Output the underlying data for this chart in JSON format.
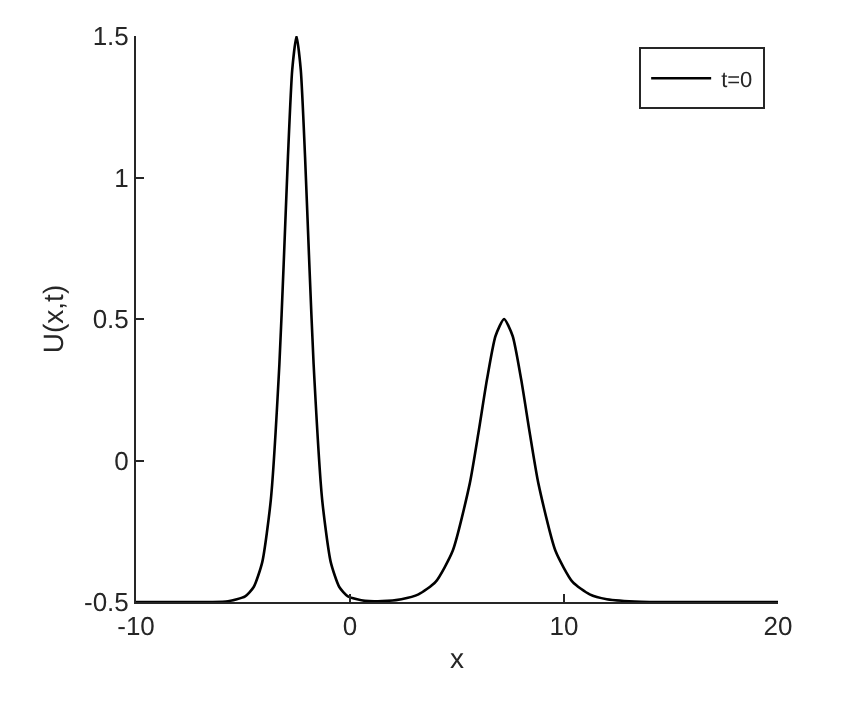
{
  "chart_data": {
    "type": "line",
    "xlabel": "x",
    "ylabel": "U(x,t)",
    "xlim": [
      -10,
      20
    ],
    "ylim": [
      -0.5,
      1.5
    ],
    "xticks": [
      -10,
      0,
      10,
      20
    ],
    "yticks": [
      -0.5,
      0,
      0.5,
      1,
      1.5
    ],
    "legend": "top right",
    "marker": "none",
    "line_style": "solid",
    "series": [
      {
        "name": "t=0",
        "color": "#000000",
        "x": [
          -10,
          -6.5,
          -5.7,
          -4.9,
          -4.5,
          -4.1,
          -3.7,
          -3.3,
          -3.1,
          -2.9,
          -2.7,
          -2.5,
          -2.3,
          -2.1,
          -1.9,
          -1.7,
          -1.3,
          -0.9,
          -0.5,
          -0.1,
          0.7,
          1.5,
          2.4,
          3.2,
          4.0,
          4.8,
          5.6,
          6.0,
          6.4,
          6.8,
          7.2,
          7.6,
          8.0,
          8.4,
          8.8,
          9.6,
          10.4,
          11.2,
          12.0,
          13.6,
          15,
          20
        ],
        "values": [
          -0.5,
          -0.5,
          -0.497,
          -0.48,
          -0.447,
          -0.359,
          -0.139,
          0.34,
          0.693,
          1.073,
          1.38,
          1.5,
          1.38,
          1.073,
          0.693,
          0.34,
          -0.139,
          -0.359,
          -0.447,
          -0.48,
          -0.496,
          -0.497,
          -0.49,
          -0.473,
          -0.429,
          -0.319,
          -0.08,
          0.097,
          0.286,
          0.44,
          0.5,
          0.44,
          0.286,
          0.097,
          -0.08,
          -0.319,
          -0.429,
          -0.473,
          -0.49,
          -0.499,
          -0.5,
          -0.5
        ]
      }
    ]
  }
}
